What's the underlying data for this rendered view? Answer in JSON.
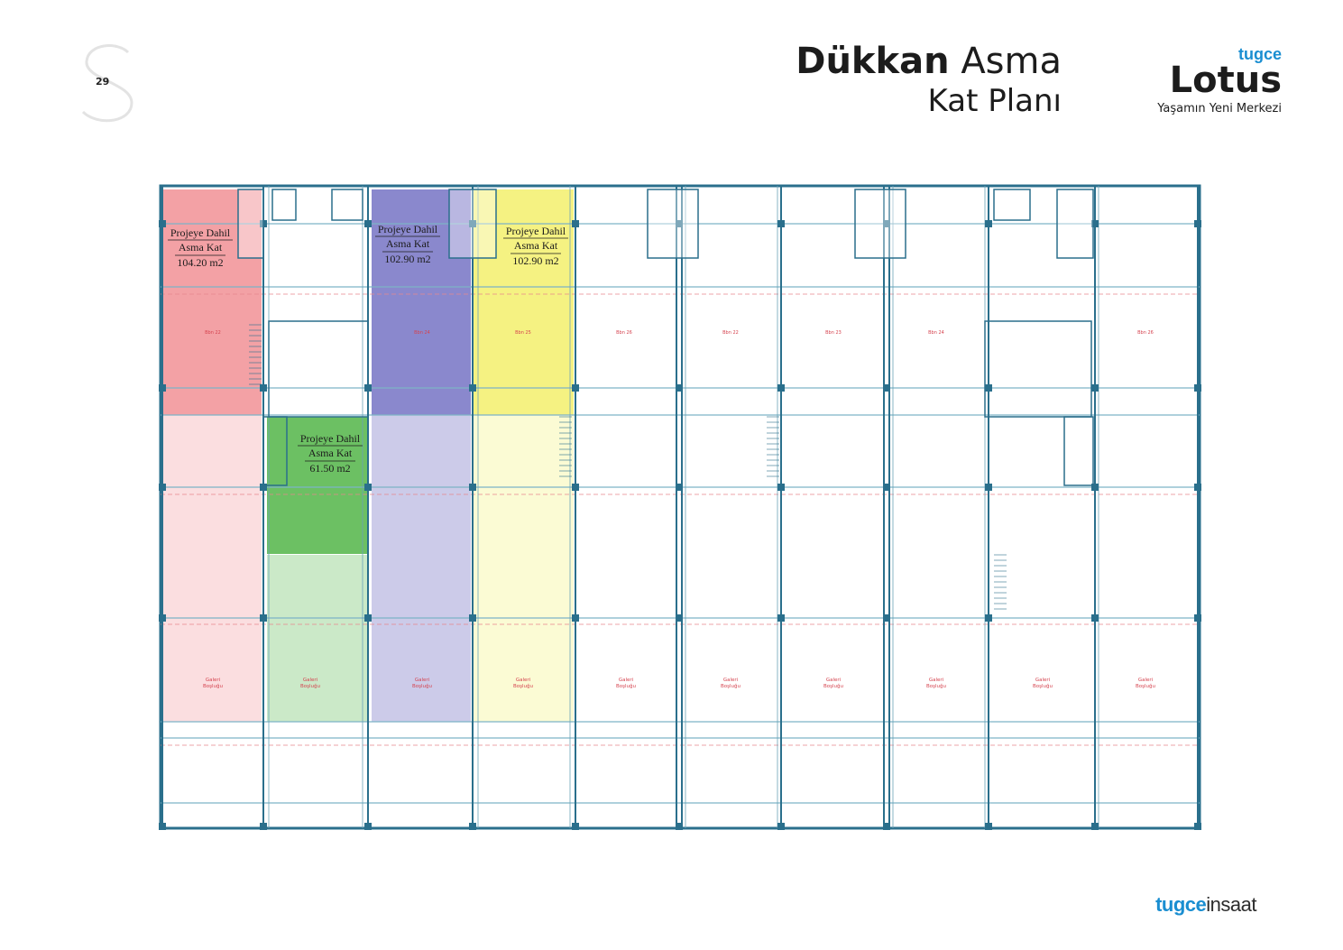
{
  "page": {
    "number": "29"
  },
  "title": {
    "bold": "Dükkan",
    "light": "Asma",
    "line2": "Kat Planı"
  },
  "brand": {
    "small": "tugce",
    "big": "Lotus",
    "tagline": "Yaşamın Yeni Merkezi"
  },
  "footer": {
    "logo_a": "tugce",
    "logo_b": "insaat"
  },
  "colors": {
    "red": "#f08a8e",
    "blue": "#6d6ac0",
    "yellow": "#f2ef63",
    "green": "#52b548",
    "accent": "#1a8ed1"
  },
  "areas": [
    {
      "l1": "Projeye Dahil",
      "l2": "Asma Kat",
      "l3": "104.20 m2"
    },
    {
      "l1": "Projeye Dahil",
      "l2": "Asma Kat",
      "l3": "102.90 m2"
    },
    {
      "l1": "Projeye Dahil",
      "l2": "Asma Kat",
      "l3": "102.90 m2"
    },
    {
      "l1": "Projeye Dahil",
      "l2": "Asma Kat",
      "l3": "61.50 m2"
    }
  ],
  "galeri": {
    "l1": "Galeri",
    "l2": "Boşluğu"
  },
  "units": [
    "Bbn 22",
    "Bbn 24",
    "Bbn 25",
    "Bbn 26",
    "Bbn 22",
    "Bbn 23",
    "Bbn 24",
    "Bbn 26"
  ]
}
